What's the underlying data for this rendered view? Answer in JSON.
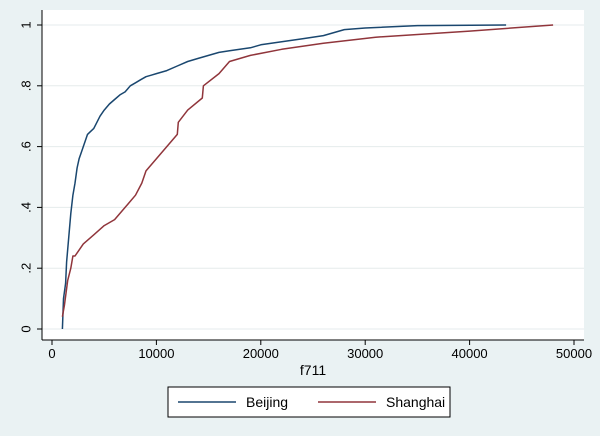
{
  "chart_data": {
    "type": "line",
    "title": "",
    "xlabel": "f711",
    "ylabel": "",
    "xlim": [
      0,
      50000
    ],
    "ylim": [
      0,
      1
    ],
    "xticks": [
      0,
      10000,
      20000,
      30000,
      40000,
      50000
    ],
    "xtick_labels": [
      "0",
      "10000",
      "20000",
      "30000",
      "40000",
      "50000"
    ],
    "yticks": [
      0,
      0.2,
      0.4,
      0.6,
      0.8,
      1
    ],
    "ytick_labels": [
      "0",
      ".2",
      ".4",
      ".6",
      ".8",
      "1"
    ],
    "grid": true,
    "legend_position": "bottom",
    "series": [
      {
        "name": "Beijing",
        "color": "#1a476f",
        "x": [
          1000,
          1100,
          1300,
          1400,
          1600,
          1800,
          2000,
          2200,
          2400,
          2600,
          2800,
          3000,
          3200,
          3400,
          3700,
          4000,
          4300,
          4600,
          5000,
          5500,
          6000,
          6500,
          7000,
          7500,
          8000,
          8500,
          9000,
          9500,
          10000,
          11000,
          12000,
          13000,
          14000,
          15000,
          16000,
          17000,
          18000,
          19000,
          20000,
          22000,
          24000,
          26000,
          28000,
          30000,
          35000,
          43500
        ],
        "y": [
          0.0,
          0.1,
          0.15,
          0.22,
          0.3,
          0.38,
          0.44,
          0.48,
          0.53,
          0.56,
          0.58,
          0.6,
          0.62,
          0.64,
          0.65,
          0.66,
          0.68,
          0.7,
          0.72,
          0.74,
          0.755,
          0.77,
          0.78,
          0.8,
          0.81,
          0.82,
          0.83,
          0.835,
          0.84,
          0.85,
          0.865,
          0.88,
          0.89,
          0.9,
          0.91,
          0.915,
          0.92,
          0.925,
          0.935,
          0.945,
          0.955,
          0.965,
          0.985,
          0.99,
          0.998,
          1.0
        ]
      },
      {
        "name": "Shanghai",
        "color": "#90353b",
        "x": [
          1000,
          1200,
          1500,
          1800,
          2000,
          2200,
          3000,
          4000,
          5000,
          6000,
          7000,
          8000,
          8600,
          9000,
          10000,
          11000,
          12000,
          12100,
          13000,
          14400,
          14500,
          16000,
          17000,
          19000,
          22000,
          26000,
          31000,
          40000,
          48000
        ],
        "y": [
          0.04,
          0.08,
          0.16,
          0.2,
          0.24,
          0.24,
          0.28,
          0.31,
          0.34,
          0.36,
          0.4,
          0.44,
          0.48,
          0.52,
          0.56,
          0.6,
          0.64,
          0.68,
          0.72,
          0.76,
          0.8,
          0.84,
          0.88,
          0.9,
          0.92,
          0.94,
          0.96,
          0.98,
          1.0
        ]
      }
    ]
  }
}
